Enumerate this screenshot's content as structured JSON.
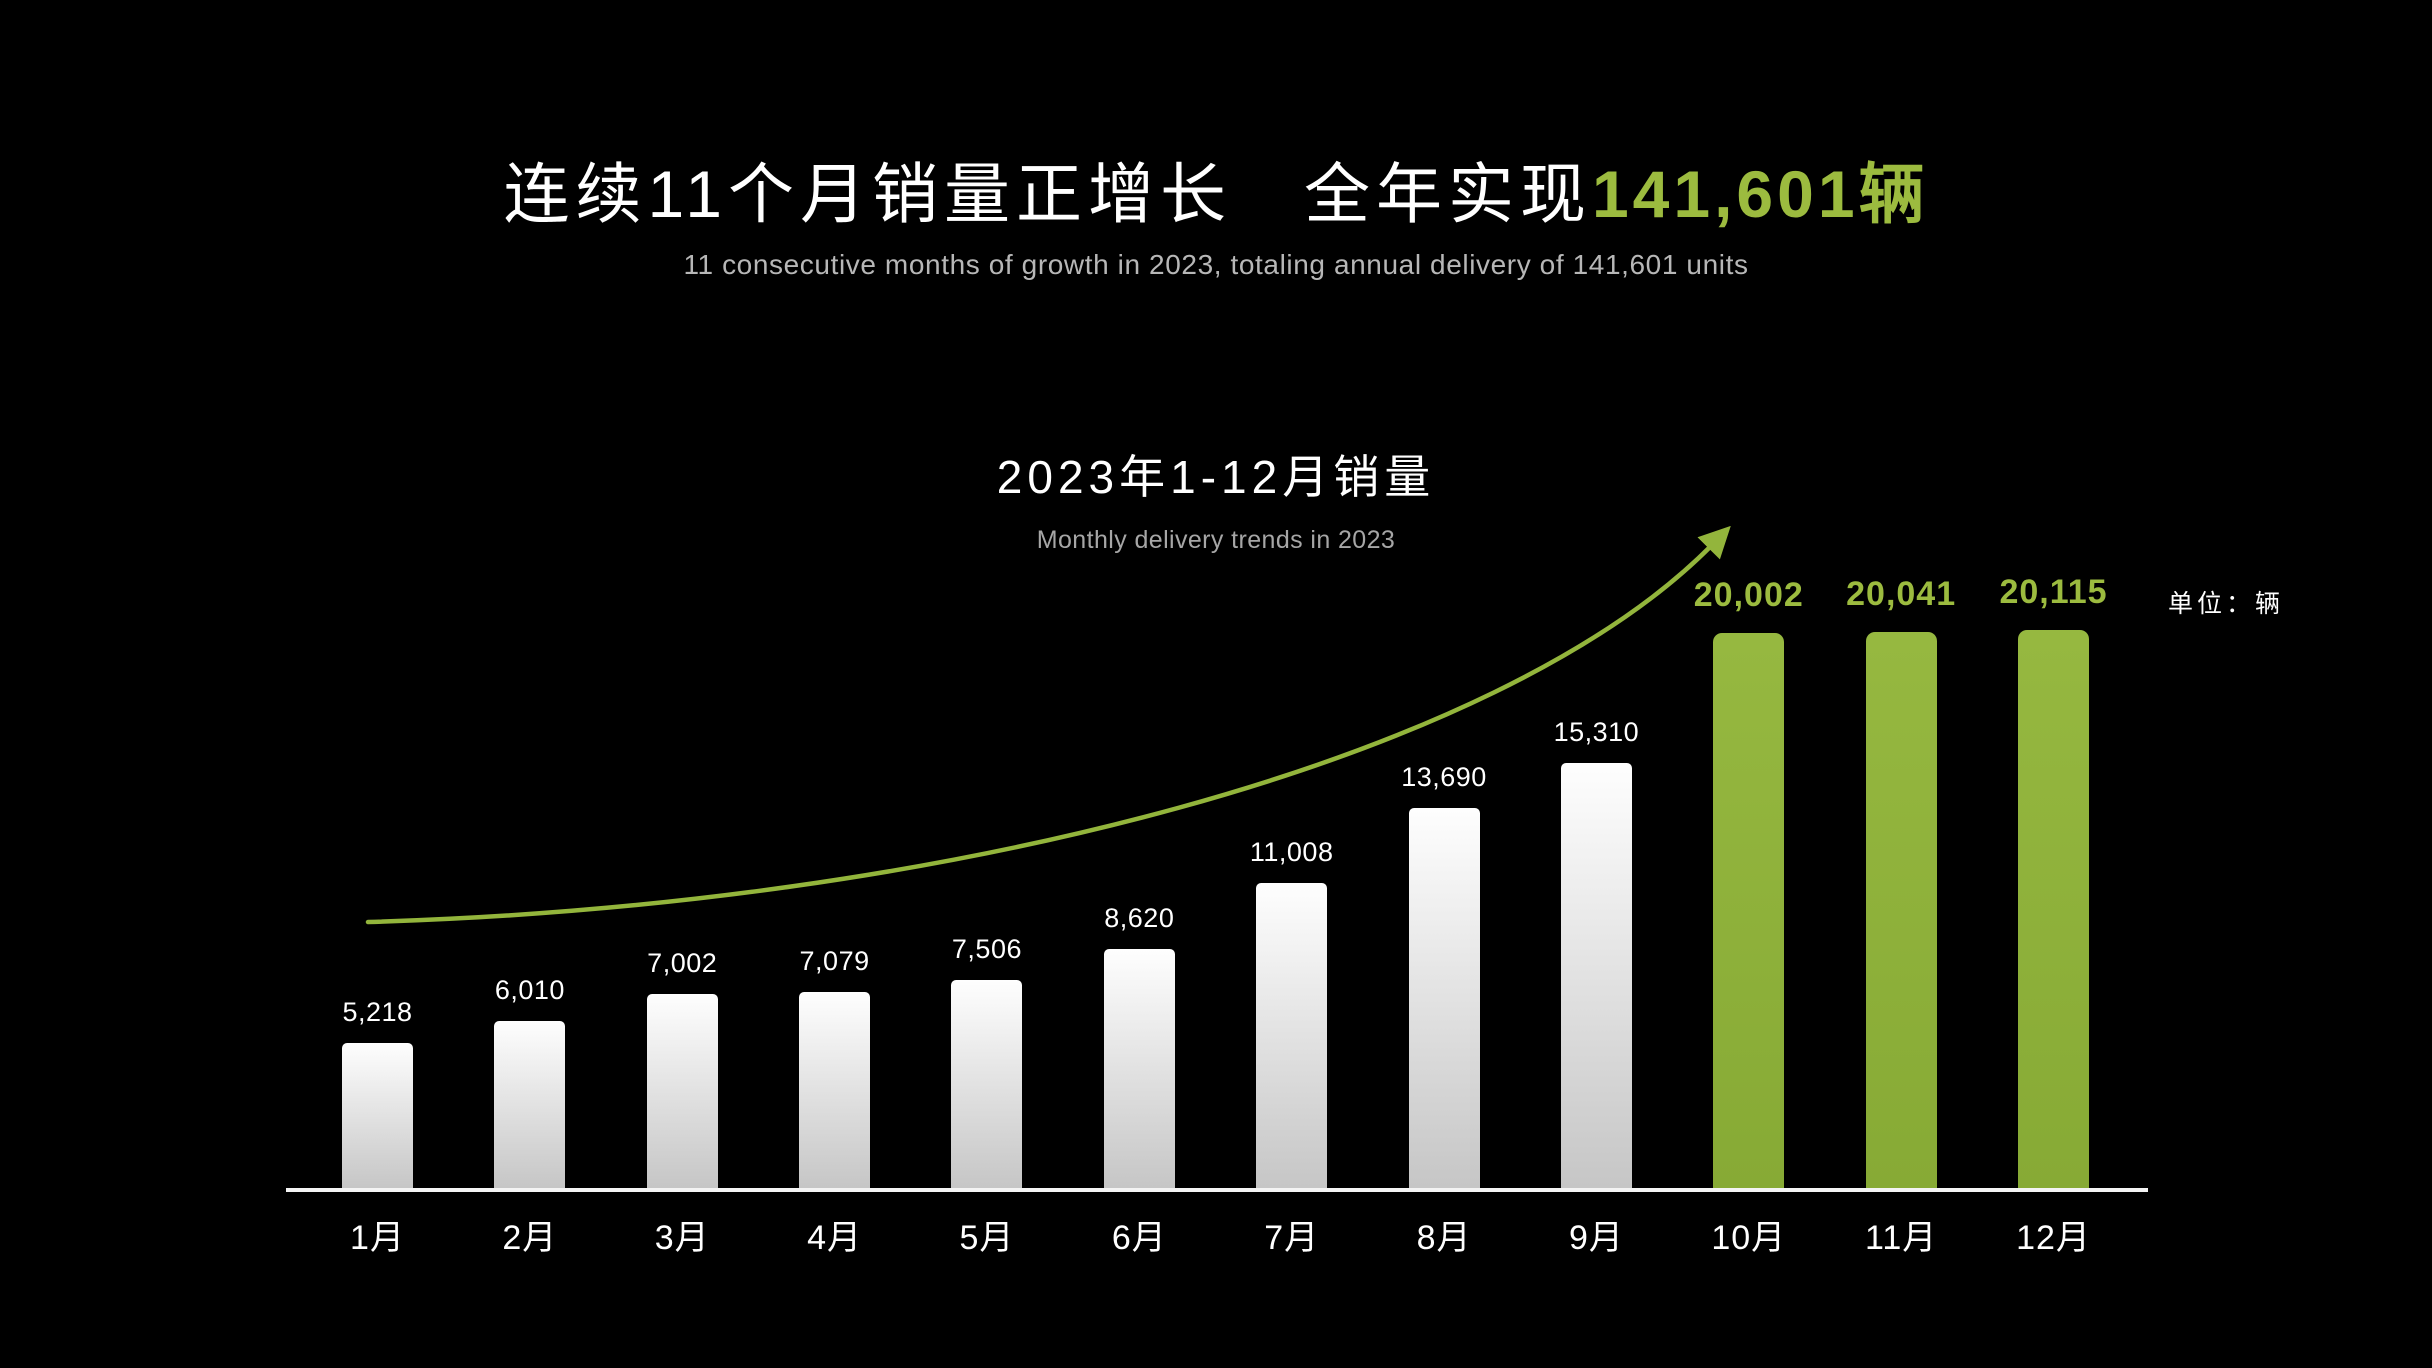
{
  "header": {
    "title_white": "连续11个月销量正增长　全年实现",
    "title_green": "141,601辆",
    "subtitle": "11 consecutive months of growth in 2023, totaling annual delivery of 141,601 units"
  },
  "chart": {
    "title": "2023年1-12月销量",
    "subtitle": "Monthly delivery trends in 2023",
    "unit_label": "单位：辆"
  },
  "chart_data": {
    "type": "bar",
    "title": "2023年1-12月销量",
    "subtitle": "Monthly delivery trends in 2023",
    "unit": "辆",
    "categories": [
      "1月",
      "2月",
      "3月",
      "4月",
      "5月",
      "6月",
      "7月",
      "8月",
      "9月",
      "10月",
      "11月",
      "12月"
    ],
    "values": [
      5218,
      6010,
      7002,
      7079,
      7506,
      8620,
      11008,
      13690,
      15310,
      20002,
      20041,
      20115
    ],
    "value_labels": [
      "5,218",
      "6,010",
      "7,002",
      "7,079",
      "7,506",
      "8,620",
      "11,008",
      "13,690",
      "15,310",
      "20,002",
      "20,041",
      "20,115"
    ],
    "highlight_from_index": 9,
    "annotation": "growth-trend-arrow",
    "legend": "none",
    "grid": false,
    "ylim": [
      0,
      20115
    ],
    "colors": {
      "background": "#000000",
      "bar_gradient_top": "#fefefe",
      "bar_gradient_bottom": "#c6c6c6",
      "highlight_bar_top": "#96b840",
      "highlight_bar_bottom": "#87aa35",
      "accent_text": "#9cbb3f",
      "arrow": "#93b53c",
      "axis": "#f4f4f4",
      "title_text": "#ffffff",
      "subtitle_text": "#b7b7b7"
    }
  }
}
